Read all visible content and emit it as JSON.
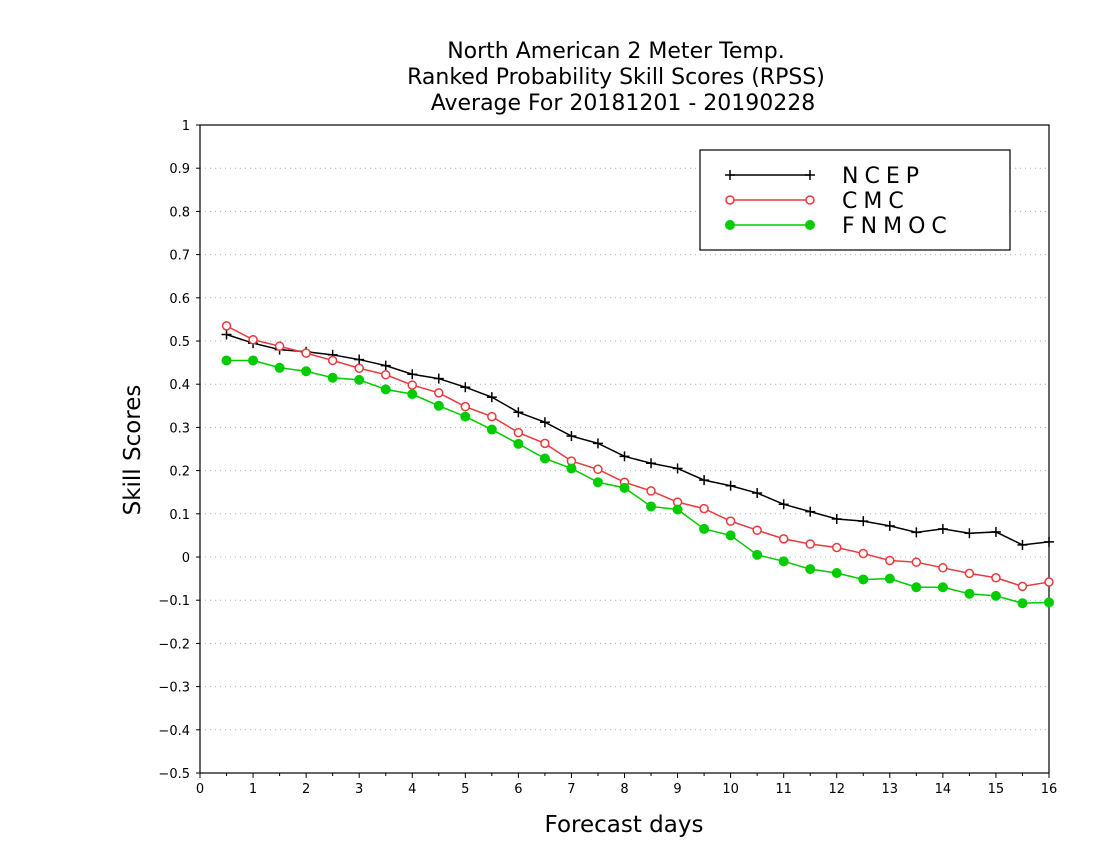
{
  "chart_data": {
    "type": "line",
    "title": [
      "North American 2 Meter Temp.",
      "Ranked Probability Skill Scores (RPSS)",
      "Average For 20181201 - 20190228"
    ],
    "xlabel": "Forecast days",
    "ylabel": "Skill Scores",
    "xlim": [
      0,
      16
    ],
    "ylim": [
      -0.5,
      1
    ],
    "x_ticks": [
      0,
      1,
      2,
      3,
      4,
      5,
      6,
      7,
      8,
      9,
      10,
      11,
      12,
      13,
      14,
      15,
      16
    ],
    "y_ticks": [
      -0.5,
      -0.4,
      -0.3,
      -0.2,
      -0.1,
      0,
      0.1,
      0.2,
      0.3,
      0.4,
      0.5,
      0.6,
      0.7,
      0.8,
      0.9,
      1
    ],
    "x_tick_labels": [
      "0",
      "1",
      "2",
      "3",
      "4",
      "5",
      "6",
      "7",
      "8",
      "9",
      "10",
      "11",
      "12",
      "13",
      "14",
      "15",
      "16"
    ],
    "y_tick_labels": [
      "−0.5",
      "−0.4",
      "−0.3",
      "−0.2",
      "−0.1",
      "0",
      "0.1",
      "0.2",
      "0.3",
      "0.4",
      "0.5",
      "0.6",
      "0.7",
      "0.8",
      "0.9",
      "1"
    ],
    "grid": true,
    "legend_position": "top-right",
    "x": [
      0.5,
      1,
      1.5,
      2,
      2.5,
      3,
      3.5,
      4,
      4.5,
      5,
      5.5,
      6,
      6.5,
      7,
      7.5,
      8,
      8.5,
      9,
      9.5,
      10,
      10.5,
      11,
      11.5,
      12,
      12.5,
      13,
      13.5,
      14,
      14.5,
      15,
      15.5,
      16
    ],
    "series": [
      {
        "name": "NCEP",
        "color": "#000000",
        "marker": "plus",
        "values": [
          0.515,
          0.495,
          0.48,
          0.475,
          0.468,
          0.457,
          0.443,
          0.423,
          0.413,
          0.393,
          0.37,
          0.335,
          0.312,
          0.28,
          0.263,
          0.233,
          0.217,
          0.205,
          0.178,
          0.165,
          0.148,
          0.122,
          0.105,
          0.088,
          0.083,
          0.072,
          0.057,
          0.065,
          0.055,
          0.058,
          0.028,
          0.035
        ]
      },
      {
        "name": "CMC",
        "color": "#e8393c",
        "marker": "open-circle",
        "values": [
          0.535,
          0.503,
          0.488,
          0.472,
          0.455,
          0.437,
          0.422,
          0.398,
          0.38,
          0.348,
          0.325,
          0.288,
          0.263,
          0.222,
          0.203,
          0.173,
          0.153,
          0.127,
          0.112,
          0.083,
          0.062,
          0.042,
          0.03,
          0.022,
          0.008,
          -0.008,
          -0.012,
          -0.025,
          -0.038,
          -0.048,
          -0.068,
          -0.058
        ]
      },
      {
        "name": "FNMOC",
        "color": "#00cc00",
        "marker": "filled-circle",
        "values": [
          0.455,
          0.455,
          0.438,
          0.43,
          0.415,
          0.41,
          0.388,
          0.377,
          0.35,
          0.325,
          0.295,
          0.262,
          0.228,
          0.205,
          0.173,
          0.16,
          0.117,
          0.11,
          0.065,
          0.05,
          0.005,
          -0.01,
          -0.028,
          -0.037,
          -0.052,
          -0.05,
          -0.07,
          -0.07,
          -0.085,
          -0.09,
          -0.107,
          -0.105
        ]
      }
    ]
  }
}
